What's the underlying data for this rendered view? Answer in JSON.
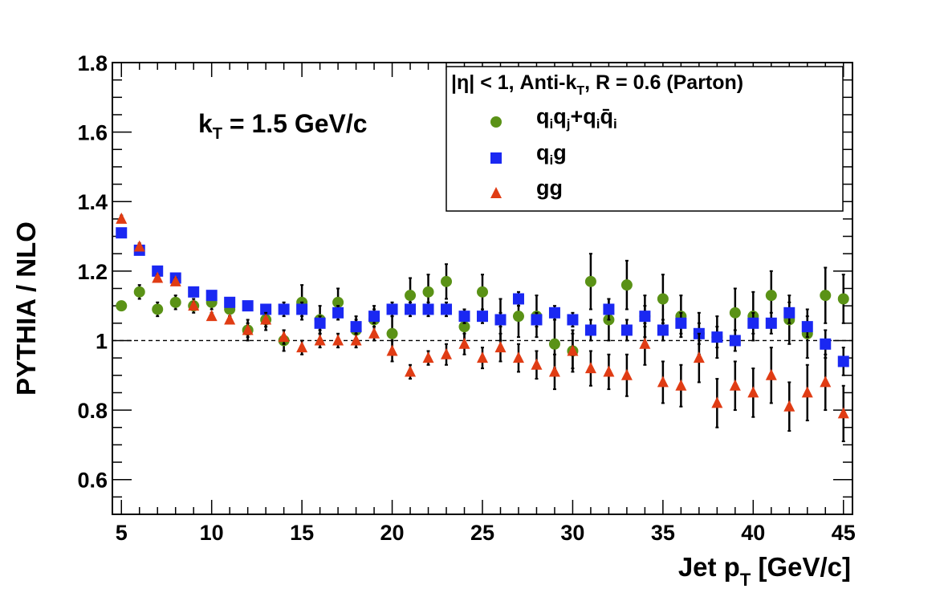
{
  "chart_data": {
    "type": "scatter",
    "title": "",
    "xlabel": "Jet p",
    "xlabel_sub": "T",
    "xlabel_unit": " [GeV/c]",
    "ylabel": "PYTHIA / NLO",
    "xlim": [
      4.5,
      45.5
    ],
    "ylim": [
      0.5,
      1.8
    ],
    "x_ticks": [
      5,
      10,
      15,
      20,
      25,
      30,
      35,
      40,
      45
    ],
    "y_ticks": [
      0.6,
      0.8,
      1.0,
      1.2,
      1.4,
      1.6,
      1.8
    ],
    "y_tick_labels": [
      "0.6",
      "0.8",
      "1",
      "1.2",
      "1.4",
      "1.6",
      "1.8"
    ],
    "reference_line": 1.0,
    "grid": false,
    "annotation": {
      "text": "k",
      "sub": "T",
      "rest": " = 1.5 GeV/c"
    },
    "legend": {
      "placement": "top-right",
      "header": {
        "a": "|η| < 1, Anti-k",
        "sub": "T",
        "b": ", R = 0.6 (Parton)"
      },
      "entries": [
        {
          "label_html": "q<sub>i</sub>q<sub>j</sub>+q<sub>i</sub>q̄<sub>i</sub>",
          "color": "#5a9216",
          "marker": "circle"
        },
        {
          "label_html": "q<sub>i</sub>g",
          "color": "#1a28f2",
          "marker": "square"
        },
        {
          "label_html": "gg",
          "color": "#e03c14",
          "marker": "triangle"
        }
      ]
    },
    "x": [
      5,
      6,
      7,
      8,
      9,
      10,
      11,
      12,
      13,
      14,
      15,
      16,
      17,
      18,
      19,
      20,
      21,
      22,
      23,
      24,
      25,
      26,
      27,
      28,
      29,
      30,
      31,
      32,
      33,
      34,
      35,
      36,
      37,
      38,
      39,
      40,
      41,
      42,
      43,
      44,
      45
    ],
    "series": [
      {
        "name": "q_i q_j + q_i q̄_i",
        "color": "#5a9216",
        "marker": "circle",
        "values": [
          1.1,
          1.14,
          1.09,
          1.11,
          1.1,
          1.11,
          1.09,
          1.03,
          1.06,
          1.0,
          1.11,
          1.06,
          1.11,
          1.03,
          1.06,
          1.02,
          1.13,
          1.14,
          1.17,
          1.04,
          1.14,
          1.06,
          1.07,
          1.07,
          0.99,
          0.97,
          1.17,
          1.06,
          1.16,
          1.07,
          1.12,
          1.07,
          1.02,
          1.01,
          1.08,
          1.07,
          1.13,
          1.06,
          1.02,
          1.13,
          1.12
        ],
        "errors": [
          0.01,
          0.02,
          0.02,
          0.02,
          0.02,
          0.02,
          0.02,
          0.03,
          0.03,
          0.03,
          0.05,
          0.04,
          0.04,
          0.04,
          0.04,
          0.05,
          0.05,
          0.05,
          0.05,
          0.05,
          0.05,
          0.06,
          0.06,
          0.06,
          0.07,
          0.06,
          0.08,
          0.06,
          0.07,
          0.06,
          0.07,
          0.06,
          0.06,
          0.06,
          0.07,
          0.07,
          0.07,
          0.07,
          0.07,
          0.08,
          0.07
        ]
      },
      {
        "name": "q_i g",
        "color": "#1a28f2",
        "marker": "square",
        "values": [
          1.31,
          1.26,
          1.2,
          1.18,
          1.14,
          1.13,
          1.11,
          1.1,
          1.09,
          1.09,
          1.09,
          1.05,
          1.08,
          1.04,
          1.07,
          1.09,
          1.09,
          1.09,
          1.09,
          1.07,
          1.07,
          1.06,
          1.12,
          1.06,
          1.08,
          1.06,
          1.03,
          1.09,
          1.03,
          1.07,
          1.03,
          1.05,
          1.02,
          1.01,
          1.0,
          1.05,
          1.05,
          1.08,
          1.04,
          0.99,
          0.94
        ],
        "errors": [
          0.01,
          0.01,
          0.01,
          0.01,
          0.01,
          0.01,
          0.01,
          0.01,
          0.01,
          0.02,
          0.02,
          0.02,
          0.02,
          0.02,
          0.02,
          0.02,
          0.02,
          0.02,
          0.02,
          0.02,
          0.02,
          0.02,
          0.02,
          0.02,
          0.02,
          0.02,
          0.03,
          0.03,
          0.03,
          0.03,
          0.03,
          0.03,
          0.03,
          0.03,
          0.03,
          0.03,
          0.03,
          0.03,
          0.03,
          0.04,
          0.04
        ]
      },
      {
        "name": "gg",
        "color": "#e03c14",
        "marker": "triangle",
        "values": [
          1.35,
          1.27,
          1.18,
          1.17,
          1.1,
          1.07,
          1.06,
          1.03,
          1.06,
          1.01,
          0.98,
          1.0,
          1.0,
          1.0,
          1.02,
          0.97,
          0.91,
          0.95,
          0.96,
          0.99,
          0.95,
          0.98,
          0.95,
          0.93,
          0.91,
          0.97,
          0.92,
          0.91,
          0.9,
          0.99,
          0.88,
          0.87,
          0.95,
          0.82,
          0.87,
          0.85,
          0.9,
          0.81,
          0.85,
          0.88,
          0.79
        ],
        "errors": [
          0.01,
          0.01,
          0.01,
          0.01,
          0.01,
          0.01,
          0.01,
          0.02,
          0.02,
          0.02,
          0.02,
          0.02,
          0.02,
          0.02,
          0.02,
          0.03,
          0.02,
          0.02,
          0.03,
          0.03,
          0.03,
          0.04,
          0.04,
          0.04,
          0.05,
          0.05,
          0.05,
          0.05,
          0.06,
          0.06,
          0.06,
          0.06,
          0.07,
          0.07,
          0.07,
          0.07,
          0.08,
          0.07,
          0.08,
          0.08,
          0.08
        ]
      }
    ]
  }
}
